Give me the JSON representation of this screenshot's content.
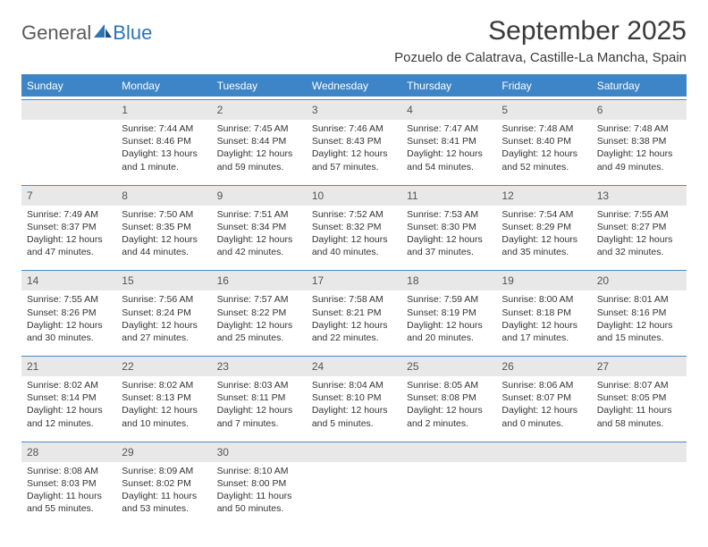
{
  "brand": {
    "word1": "General",
    "word2": "Blue"
  },
  "title": "September 2025",
  "subtitle": "Pozuelo de Calatrava, Castille-La Mancha, Spain",
  "colors": {
    "header_bg": "#3d85c6",
    "header_text": "#ffffff",
    "daynum_bg": "#e8e8e8",
    "border": "#4a8bc2",
    "body_text": "#333333",
    "title_text": "#3a3a3a",
    "logo_gray": "#5a5a5a",
    "logo_blue": "#2e75b6"
  },
  "weekdays": [
    "Sunday",
    "Monday",
    "Tuesday",
    "Wednesday",
    "Thursday",
    "Friday",
    "Saturday"
  ],
  "weeks": [
    [
      {
        "n": "",
        "sunrise": "",
        "sunset": "",
        "daylight": ""
      },
      {
        "n": "1",
        "sunrise": "Sunrise: 7:44 AM",
        "sunset": "Sunset: 8:46 PM",
        "daylight": "Daylight: 13 hours and 1 minute."
      },
      {
        "n": "2",
        "sunrise": "Sunrise: 7:45 AM",
        "sunset": "Sunset: 8:44 PM",
        "daylight": "Daylight: 12 hours and 59 minutes."
      },
      {
        "n": "3",
        "sunrise": "Sunrise: 7:46 AM",
        "sunset": "Sunset: 8:43 PM",
        "daylight": "Daylight: 12 hours and 57 minutes."
      },
      {
        "n": "4",
        "sunrise": "Sunrise: 7:47 AM",
        "sunset": "Sunset: 8:41 PM",
        "daylight": "Daylight: 12 hours and 54 minutes."
      },
      {
        "n": "5",
        "sunrise": "Sunrise: 7:48 AM",
        "sunset": "Sunset: 8:40 PM",
        "daylight": "Daylight: 12 hours and 52 minutes."
      },
      {
        "n": "6",
        "sunrise": "Sunrise: 7:48 AM",
        "sunset": "Sunset: 8:38 PM",
        "daylight": "Daylight: 12 hours and 49 minutes."
      }
    ],
    [
      {
        "n": "7",
        "sunrise": "Sunrise: 7:49 AM",
        "sunset": "Sunset: 8:37 PM",
        "daylight": "Daylight: 12 hours and 47 minutes."
      },
      {
        "n": "8",
        "sunrise": "Sunrise: 7:50 AM",
        "sunset": "Sunset: 8:35 PM",
        "daylight": "Daylight: 12 hours and 44 minutes."
      },
      {
        "n": "9",
        "sunrise": "Sunrise: 7:51 AM",
        "sunset": "Sunset: 8:34 PM",
        "daylight": "Daylight: 12 hours and 42 minutes."
      },
      {
        "n": "10",
        "sunrise": "Sunrise: 7:52 AM",
        "sunset": "Sunset: 8:32 PM",
        "daylight": "Daylight: 12 hours and 40 minutes."
      },
      {
        "n": "11",
        "sunrise": "Sunrise: 7:53 AM",
        "sunset": "Sunset: 8:30 PM",
        "daylight": "Daylight: 12 hours and 37 minutes."
      },
      {
        "n": "12",
        "sunrise": "Sunrise: 7:54 AM",
        "sunset": "Sunset: 8:29 PM",
        "daylight": "Daylight: 12 hours and 35 minutes."
      },
      {
        "n": "13",
        "sunrise": "Sunrise: 7:55 AM",
        "sunset": "Sunset: 8:27 PM",
        "daylight": "Daylight: 12 hours and 32 minutes."
      }
    ],
    [
      {
        "n": "14",
        "sunrise": "Sunrise: 7:55 AM",
        "sunset": "Sunset: 8:26 PM",
        "daylight": "Daylight: 12 hours and 30 minutes."
      },
      {
        "n": "15",
        "sunrise": "Sunrise: 7:56 AM",
        "sunset": "Sunset: 8:24 PM",
        "daylight": "Daylight: 12 hours and 27 minutes."
      },
      {
        "n": "16",
        "sunrise": "Sunrise: 7:57 AM",
        "sunset": "Sunset: 8:22 PM",
        "daylight": "Daylight: 12 hours and 25 minutes."
      },
      {
        "n": "17",
        "sunrise": "Sunrise: 7:58 AM",
        "sunset": "Sunset: 8:21 PM",
        "daylight": "Daylight: 12 hours and 22 minutes."
      },
      {
        "n": "18",
        "sunrise": "Sunrise: 7:59 AM",
        "sunset": "Sunset: 8:19 PM",
        "daylight": "Daylight: 12 hours and 20 minutes."
      },
      {
        "n": "19",
        "sunrise": "Sunrise: 8:00 AM",
        "sunset": "Sunset: 8:18 PM",
        "daylight": "Daylight: 12 hours and 17 minutes."
      },
      {
        "n": "20",
        "sunrise": "Sunrise: 8:01 AM",
        "sunset": "Sunset: 8:16 PM",
        "daylight": "Daylight: 12 hours and 15 minutes."
      }
    ],
    [
      {
        "n": "21",
        "sunrise": "Sunrise: 8:02 AM",
        "sunset": "Sunset: 8:14 PM",
        "daylight": "Daylight: 12 hours and 12 minutes."
      },
      {
        "n": "22",
        "sunrise": "Sunrise: 8:02 AM",
        "sunset": "Sunset: 8:13 PM",
        "daylight": "Daylight: 12 hours and 10 minutes."
      },
      {
        "n": "23",
        "sunrise": "Sunrise: 8:03 AM",
        "sunset": "Sunset: 8:11 PM",
        "daylight": "Daylight: 12 hours and 7 minutes."
      },
      {
        "n": "24",
        "sunrise": "Sunrise: 8:04 AM",
        "sunset": "Sunset: 8:10 PM",
        "daylight": "Daylight: 12 hours and 5 minutes."
      },
      {
        "n": "25",
        "sunrise": "Sunrise: 8:05 AM",
        "sunset": "Sunset: 8:08 PM",
        "daylight": "Daylight: 12 hours and 2 minutes."
      },
      {
        "n": "26",
        "sunrise": "Sunrise: 8:06 AM",
        "sunset": "Sunset: 8:07 PM",
        "daylight": "Daylight: 12 hours and 0 minutes."
      },
      {
        "n": "27",
        "sunrise": "Sunrise: 8:07 AM",
        "sunset": "Sunset: 8:05 PM",
        "daylight": "Daylight: 11 hours and 58 minutes."
      }
    ],
    [
      {
        "n": "28",
        "sunrise": "Sunrise: 8:08 AM",
        "sunset": "Sunset: 8:03 PM",
        "daylight": "Daylight: 11 hours and 55 minutes."
      },
      {
        "n": "29",
        "sunrise": "Sunrise: 8:09 AM",
        "sunset": "Sunset: 8:02 PM",
        "daylight": "Daylight: 11 hours and 53 minutes."
      },
      {
        "n": "30",
        "sunrise": "Sunrise: 8:10 AM",
        "sunset": "Sunset: 8:00 PM",
        "daylight": "Daylight: 11 hours and 50 minutes."
      },
      {
        "n": "",
        "sunrise": "",
        "sunset": "",
        "daylight": ""
      },
      {
        "n": "",
        "sunrise": "",
        "sunset": "",
        "daylight": ""
      },
      {
        "n": "",
        "sunrise": "",
        "sunset": "",
        "daylight": ""
      },
      {
        "n": "",
        "sunrise": "",
        "sunset": "",
        "daylight": ""
      }
    ]
  ]
}
